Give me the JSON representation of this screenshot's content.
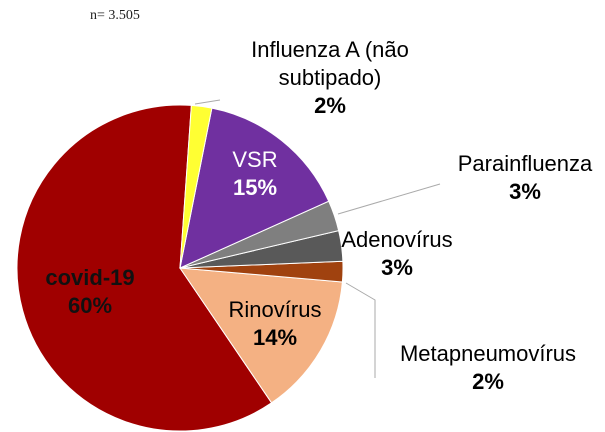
{
  "chart_data": {
    "type": "pie",
    "note": "n= 3.505",
    "categories": [
      "Influenza A (não subtipado)",
      "VSR",
      "Parainfluenza",
      "Adenovírus",
      "Metapneumovírus",
      "Rinovírus",
      "covid-19"
    ],
    "values": [
      2,
      15,
      3,
      3,
      2,
      14,
      60
    ],
    "value_labels": [
      "2%",
      "15%",
      "3%",
      "3%",
      "2%",
      "14%",
      "60%"
    ],
    "colors": [
      "#ffff33",
      "#7030a0",
      "#7f7f7f",
      "#595959",
      "#a0420f",
      "#f4b183",
      "#a00000"
    ]
  }
}
